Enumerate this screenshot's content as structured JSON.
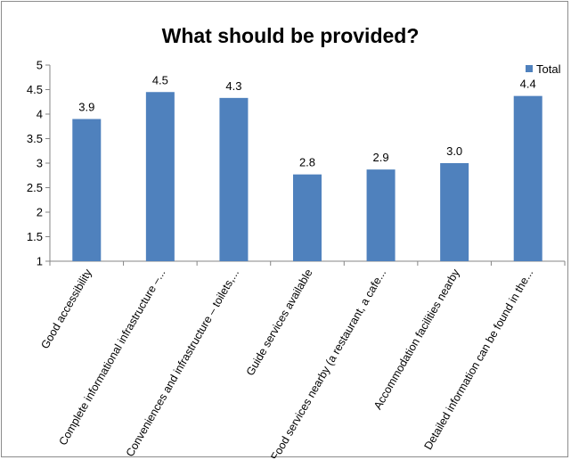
{
  "chart_data": {
    "type": "bar",
    "title": "What should be provided?",
    "categories": [
      "Good accessibility",
      "Complete informational infrastructure –...",
      "Conveniences and infrastructure – toilets,...",
      "Guide services available",
      "Food services nearby (a restaurant, a cafe...",
      "Accommodation facilities nearby",
      "Detailed information can be found in the..."
    ],
    "series": [
      {
        "name": "Total",
        "values": [
          3.9,
          4.45,
          4.33,
          2.77,
          2.87,
          3.0,
          4.37
        ],
        "labels": [
          "3.9",
          "4.5",
          "4.3",
          "2.8",
          "2.9",
          "3.0",
          "4.4"
        ]
      }
    ],
    "ylim": [
      1,
      5
    ],
    "yticks": [
      "1",
      "1.5",
      "2",
      "2.5",
      "3",
      "3.5",
      "4",
      "4.5",
      "5"
    ],
    "xlabel": "",
    "ylabel": "",
    "grid": false,
    "legend": "top-right",
    "bar_color": "#4f81bd"
  }
}
